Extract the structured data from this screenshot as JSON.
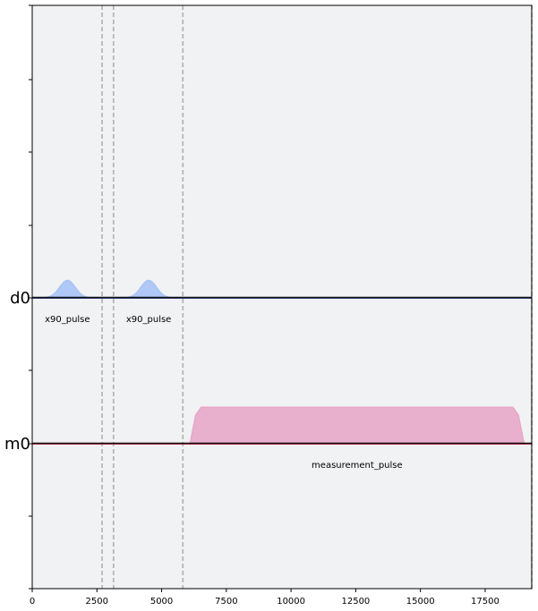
{
  "chart_data": {
    "type": "pulse-schedule",
    "xlim": [
      0,
      19300
    ],
    "x_ticks": [
      0,
      2500,
      5000,
      7500,
      10000,
      12500,
      15000,
      17500
    ],
    "x_tick_labels": [
      "0",
      "2500",
      "5000",
      "7500",
      "10000",
      "12500",
      "15000",
      "17500"
    ],
    "channels": [
      {
        "name": "d0",
        "color": "#a8c3f5",
        "line_color": "#1b2a5e"
      },
      {
        "name": "m0",
        "color": "#e7a8c9",
        "line_color": "#8b0e2a"
      }
    ],
    "pulses": [
      {
        "label": "x90_pulse",
        "channel": "d0",
        "shape": "gaussian",
        "start": 160,
        "end": 2560,
        "amplitude": 0.12
      },
      {
        "label": "x90_pulse",
        "channel": "d0",
        "shape": "gaussian",
        "start": 3300,
        "end": 5700,
        "amplitude": 0.12
      },
      {
        "label": "measurement_pulse",
        "channel": "m0",
        "shape": "gaussian_square",
        "start": 6100,
        "end": 19000,
        "amplitude": 0.25
      }
    ],
    "barriers": [
      2700,
      3140,
      5820,
      19300
    ]
  }
}
